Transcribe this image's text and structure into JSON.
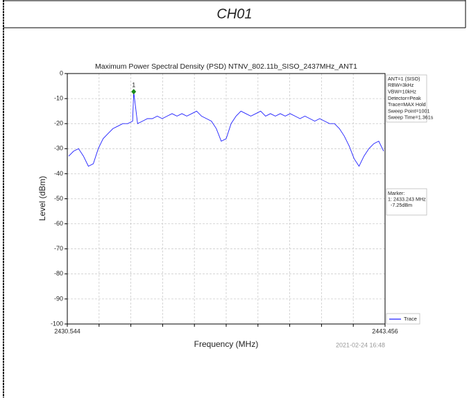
{
  "header": "CH01",
  "chart_data": {
    "type": "line",
    "title": "Maximum Power Spectral Density (PSD) NTNV_802.11b_SISO_2437MHz_ANT1",
    "x_label": "Frequency (MHz)",
    "y_label": "Level (dBm)",
    "xlim": [
      2430.544,
      2443.456
    ],
    "xticks": [
      2430.544,
      2443.456
    ],
    "ylim": [
      -100,
      0
    ],
    "yticks": [
      0,
      -10,
      -20,
      -30,
      -40,
      -50,
      -60,
      -70,
      -80,
      -90,
      -100
    ],
    "grid": true,
    "x": [
      2430.6,
      2430.8,
      2431.0,
      2431.2,
      2431.4,
      2431.6,
      2431.8,
      2432.0,
      2432.2,
      2432.4,
      2432.6,
      2432.8,
      2433.0,
      2433.2,
      2433.243,
      2433.4,
      2433.6,
      2433.8,
      2434.0,
      2434.2,
      2434.4,
      2434.6,
      2434.8,
      2435.0,
      2435.2,
      2435.4,
      2435.6,
      2435.8,
      2436.0,
      2436.2,
      2436.4,
      2436.6,
      2436.8,
      2437.0,
      2437.2,
      2437.4,
      2437.6,
      2437.8,
      2438.0,
      2438.2,
      2438.4,
      2438.6,
      2438.8,
      2439.0,
      2439.2,
      2439.4,
      2439.6,
      2439.8,
      2440.0,
      2440.2,
      2440.4,
      2440.6,
      2440.8,
      2441.0,
      2441.2,
      2441.4,
      2441.6,
      2441.8,
      2442.0,
      2442.2,
      2442.4,
      2442.6,
      2442.8,
      2443.0,
      2443.2,
      2443.4
    ],
    "series": [
      {
        "name": "Trace",
        "color": "#2020ff",
        "values": [
          -33,
          -31,
          -30,
          -33,
          -37,
          -36,
          -30,
          -26,
          -24,
          -22,
          -21,
          -20,
          -20,
          -19,
          -7.25,
          -20,
          -19,
          -18,
          -18,
          -17,
          -18,
          -17,
          -16,
          -17,
          -16,
          -17,
          -16,
          -15,
          -17,
          -18,
          -19,
          -22,
          -27,
          -26,
          -20,
          -17,
          -15,
          -16,
          -17,
          -16,
          -15,
          -17,
          -16,
          -17,
          -16,
          -17,
          -16,
          -17,
          -18,
          -17,
          -18,
          -19,
          -18,
          -19,
          -20,
          -20,
          -22,
          -25,
          -29,
          -34,
          -37,
          -33,
          -30,
          -28,
          -27,
          -31
        ]
      }
    ],
    "marker": {
      "name": "1",
      "x": 2433.243,
      "y": -7.25,
      "color": "#1a8a1a"
    },
    "info": [
      "ANT=1 (SISO)",
      "RBW=3kHz",
      "VBW=10kHz",
      "Detector=Peak",
      "Trace=MAX Hold",
      "Sweep Point=1001",
      "Sweep Time=1.361s"
    ],
    "marker_info": [
      "Marker:",
      "1: 2433.243 MHz",
      "  -7.25dBm"
    ],
    "legend": "lower right",
    "timestamp": "2021-02-24 16:48"
  }
}
